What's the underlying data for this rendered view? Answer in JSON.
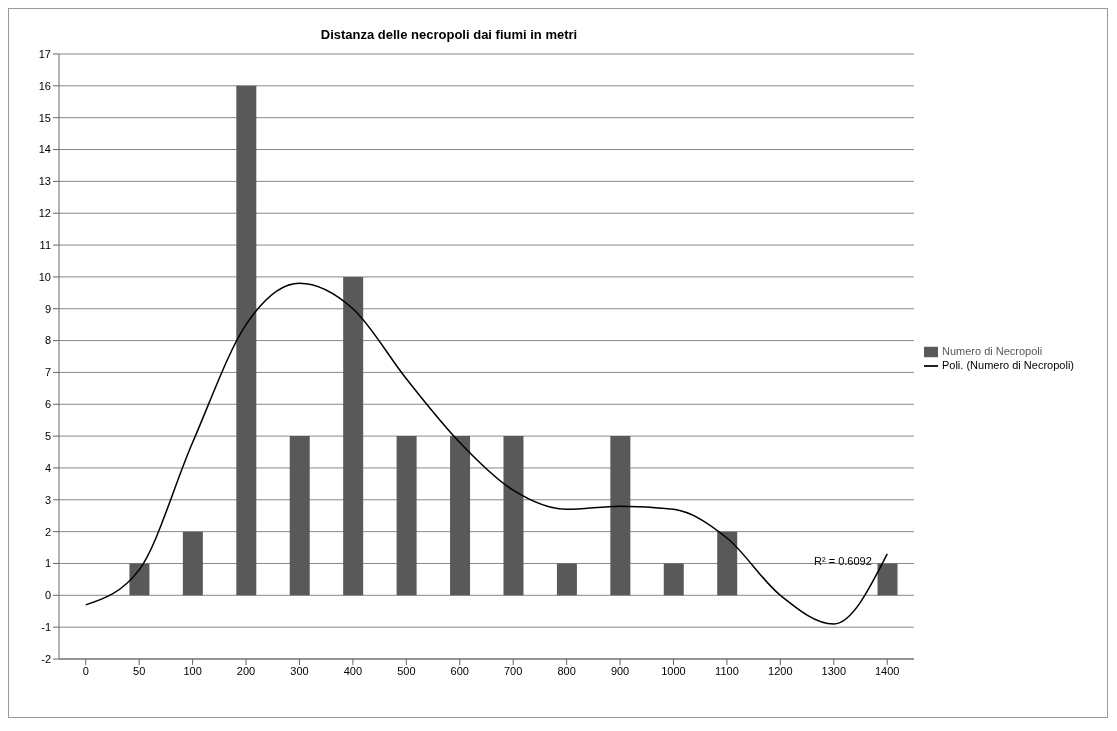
{
  "chart_data": {
    "type": "bar",
    "title": "Distanza delle necropoli dai fiumi in metri",
    "categories": [
      "0",
      "50",
      "100",
      "200",
      "300",
      "400",
      "500",
      "600",
      "700",
      "800",
      "900",
      "1000",
      "1100",
      "1200",
      "1300",
      "1400"
    ],
    "series": [
      {
        "name": "Numero di Necropoli",
        "color": "#595959",
        "values": [
          0,
          1,
          2,
          16,
          5,
          10,
          5,
          5,
          5,
          1,
          5,
          1,
          2,
          0,
          0,
          1
        ]
      },
      {
        "name": "Poli. (Numero di Necropoli)",
        "type": "line",
        "color": "#000000",
        "values": [
          -0.3,
          0.8,
          4.8,
          8.5,
          9.8,
          9,
          6.8,
          4.8,
          3.3,
          2.7,
          2.8,
          2.7,
          1.8,
          0,
          -0.9,
          1.3
        ]
      }
    ],
    "ylim": [
      -2,
      17
    ],
    "yticks": [
      -2,
      -1,
      0,
      1,
      2,
      3,
      4,
      5,
      6,
      7,
      8,
      9,
      10,
      11,
      12,
      13,
      14,
      15,
      16,
      17
    ],
    "grid": "y",
    "legend": "right",
    "marker": "none",
    "line_style": "solid",
    "annotations": [
      "R² = 0.6092"
    ]
  }
}
